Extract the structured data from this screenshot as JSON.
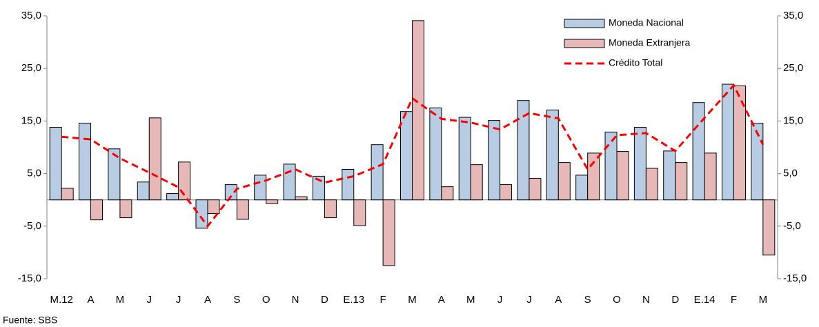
{
  "chart_data": {
    "type": "bar",
    "categories": [
      "M.12",
      "A",
      "M",
      "J",
      "J",
      "A",
      "S",
      "O",
      "N",
      "D",
      "E.13",
      "F",
      "M",
      "A",
      "M",
      "J",
      "J",
      "A",
      "S",
      "O",
      "N",
      "D",
      "E.14",
      "F",
      "M"
    ],
    "series": [
      {
        "name": "Moneda Nacional",
        "type": "bar",
        "color": "#b8cce4",
        "values": [
          13.8,
          14.6,
          9.7,
          3.4,
          1.2,
          -5.4,
          2.9,
          4.7,
          6.8,
          4.5,
          5.8,
          10.5,
          16.8,
          17.5,
          15.7,
          15.1,
          18.9,
          17.1,
          4.7,
          12.9,
          13.8,
          9.3,
          18.5,
          22.0,
          14.6
        ]
      },
      {
        "name": "Moneda Extranjera",
        "type": "bar",
        "color": "#e6b9b8",
        "values": [
          2.2,
          -3.8,
          -3.4,
          15.6,
          7.2,
          -2.6,
          -3.7,
          -0.7,
          0.6,
          -3.4,
          -4.9,
          -12.5,
          34.1,
          2.5,
          6.7,
          2.9,
          4.1,
          7.1,
          8.9,
          9.2,
          6.0,
          7.1,
          8.9,
          21.7,
          -10.5
        ]
      },
      {
        "name": "Crédito Total",
        "type": "line",
        "color": "#ff0000",
        "values": [
          12.0,
          11.5,
          7.9,
          5.2,
          2.4,
          -5.0,
          2.1,
          3.7,
          5.8,
          3.3,
          4.5,
          6.8,
          19.3,
          15.4,
          14.7,
          13.4,
          16.5,
          15.5,
          5.8,
          12.3,
          12.7,
          9.3,
          15.6,
          21.8,
          10.5
        ]
      }
    ],
    "ylim": [
      -15,
      35
    ],
    "yticks": [
      {
        "value": -15,
        "label": "-15,0"
      },
      {
        "value": -5,
        "label": "-5,0"
      },
      {
        "value": 5,
        "label": "5,0"
      },
      {
        "value": 15,
        "label": "15,0"
      },
      {
        "value": 25,
        "label": "25,0"
      },
      {
        "value": 35,
        "label": "35,0"
      }
    ],
    "y2lim": [
      -15,
      35
    ],
    "y2ticks": [
      {
        "value": -15,
        "label": "-15,0"
      },
      {
        "value": -5,
        "label": "-5,0"
      },
      {
        "value": 5,
        "label": "5,0"
      },
      {
        "value": 15,
        "label": "15,0"
      },
      {
        "value": 25,
        "label": "25,0"
      },
      {
        "value": 35,
        "label": "35,0"
      }
    ],
    "legend": "top-right",
    "source": "Fuente: SBS"
  }
}
